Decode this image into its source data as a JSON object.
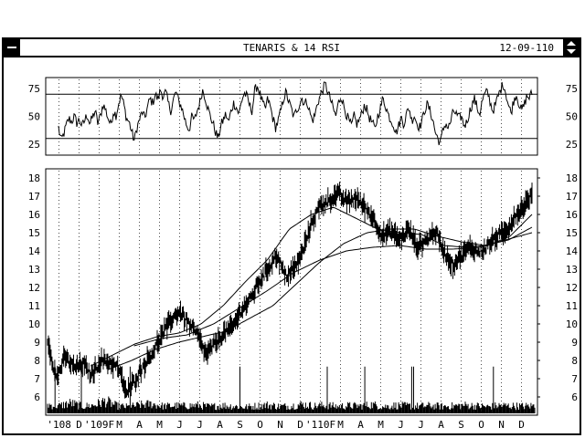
{
  "window": {
    "title": "TENARIS & 14 RSI",
    "date": "12-09-110",
    "system_menu_icon": "minus-icon",
    "scroll_button_icon": "up-down-arrows-icon"
  },
  "chart_data": [
    {
      "type": "line",
      "title": "14 RSI",
      "yticks": [
        75,
        50,
        25
      ],
      "ylim": [
        15,
        85
      ],
      "reference_lines": [
        70,
        30
      ],
      "series": [
        {
          "values": [
            40,
            28,
            34,
            42,
            48,
            45,
            50,
            44,
            47,
            41,
            46,
            52,
            43,
            49,
            55,
            44,
            50,
            61,
            56,
            48,
            42,
            55,
            51,
            62,
            69,
            60,
            48,
            45,
            36,
            28,
            40,
            47,
            54,
            48,
            58,
            66,
            62,
            70,
            65,
            74,
            68,
            72,
            61,
            55,
            66,
            72,
            63,
            59,
            50,
            42,
            38,
            50,
            46,
            55,
            62,
            74,
            68,
            58,
            50,
            44,
            36,
            30,
            41,
            47,
            52,
            44,
            55,
            62,
            58,
            52,
            64,
            71,
            68,
            60,
            55,
            73,
            78,
            70,
            62,
            56,
            66,
            58,
            48,
            40,
            46,
            55,
            66,
            72,
            63,
            57,
            49,
            56,
            60,
            67,
            61,
            64,
            54,
            46,
            51,
            62,
            68,
            74,
            79,
            72,
            65,
            57,
            50,
            62,
            69,
            60,
            52,
            46,
            41,
            50,
            43,
            47,
            53,
            61,
            55,
            48,
            44,
            38,
            50,
            57,
            66,
            60,
            52,
            47,
            43,
            35,
            41,
            49,
            43,
            52,
            58,
            46,
            51,
            44,
            40,
            46,
            56,
            61,
            55,
            48,
            36,
            30,
            26,
            38,
            44,
            39,
            46,
            55,
            52,
            48,
            50,
            42,
            44,
            53,
            60,
            66,
            58,
            52,
            64,
            70,
            72,
            63,
            55,
            60,
            68,
            74,
            80,
            71,
            60,
            53,
            64,
            70,
            62,
            55,
            60,
            68,
            67,
            71
          ]
        }
      ]
    },
    {
      "type": "line",
      "title": "TENARIS",
      "yticks": [
        18,
        17,
        16,
        15,
        14,
        13,
        12,
        11,
        10,
        9,
        8,
        7,
        6
      ],
      "ylim": [
        5,
        18.5
      ],
      "xticks": [
        "'108",
        "D",
        "'109F",
        "M",
        "A",
        "M",
        "J",
        "J",
        "A",
        "S",
        "O",
        "N",
        "D",
        "'110F",
        "M",
        "A",
        "M",
        "J",
        "J",
        "A",
        "S",
        "O",
        "N",
        "D"
      ],
      "price_anchors": [
        9.2,
        7.0,
        8.2,
        7.6,
        7.8,
        7.2,
        8.0,
        7.9,
        7.6,
        6.2,
        7.0,
        7.8,
        8.5,
        9.4,
        10.2,
        10.7,
        10.0,
        9.4,
        8.3,
        8.9,
        9.5,
        9.8,
        10.8,
        11.3,
        12.3,
        13.0,
        13.8,
        12.6,
        13.0,
        14.0,
        15.6,
        16.5,
        16.8,
        17.1,
        16.7,
        16.9,
        16.4,
        15.8,
        14.8,
        15.1,
        14.6,
        15.2,
        14.2,
        14.6,
        15.1,
        14.0,
        13.2,
        13.8,
        14.2,
        13.9,
        14.3,
        14.8,
        15.0,
        15.9,
        16.4,
        17.1
      ],
      "moving_averages": [
        {
          "anchors": [
            7.7,
            8.3,
            8.9,
            9.3,
            9.5,
            10.0,
            11.0,
            12.3,
            13.5,
            15.2,
            16.0,
            16.4,
            15.8,
            15.2,
            15.0,
            14.9,
            14.3,
            14.2,
            14.3,
            14.8,
            16.0
          ],
          "start": 5
        },
        {
          "anchors": [
            7.5,
            8.0,
            8.6,
            9.0,
            9.3,
            9.6,
            10.3,
            11.0,
            12.2,
            13.4,
            14.4,
            15.0,
            15.2,
            15.2,
            14.8,
            14.5,
            14.3,
            14.6,
            15.3
          ],
          "start": 7
        },
        {
          "anchors": [
            8.8,
            9.2,
            9.4,
            10.0,
            10.9,
            11.8,
            12.8,
            13.5,
            14.0,
            14.2,
            14.3,
            14.1,
            14.1,
            14.2,
            14.6,
            15.0
          ],
          "start": 10
        }
      ],
      "volume_anchors": [
        0.35,
        0.3,
        0.42,
        0.28,
        0.33,
        0.5,
        0.3,
        0.26,
        0.34,
        0.38,
        0.29,
        0.31,
        0.3,
        0.33,
        0.27,
        0.32,
        0.29,
        0.25,
        0.3,
        0.34,
        0.28,
        0.3,
        0.36,
        0.3,
        0.33,
        0.28,
        0.31,
        0.3,
        0.35,
        0.27,
        0.32,
        0.3,
        0.29,
        0.31,
        0.28,
        0.3,
        0.33,
        0.3,
        0.27,
        0.32,
        0.3,
        0.29,
        0.31
      ],
      "volume_spikes": [
        8,
        36,
        88,
        205,
        298,
        338,
        388,
        390,
        475,
        544
      ]
    }
  ]
}
